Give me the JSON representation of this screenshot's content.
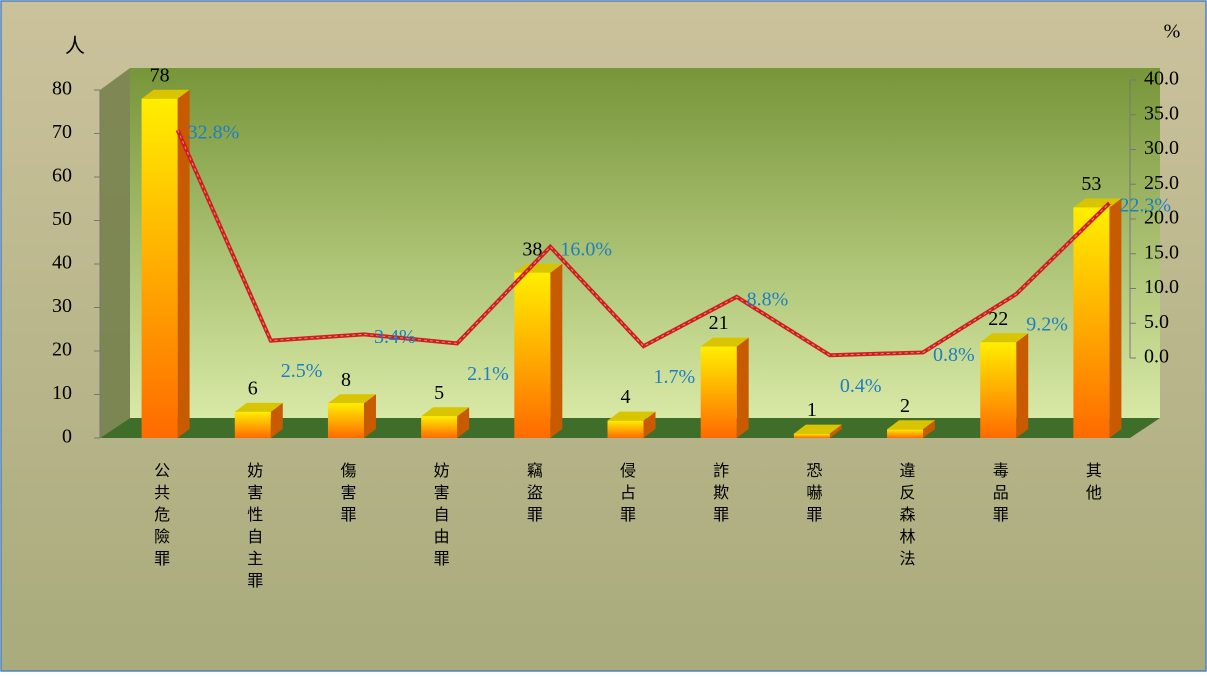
{
  "chart_data": {
    "type": "bar-line",
    "y_label": "人",
    "y2_label": "%",
    "categories": [
      "公共危險罪",
      "妨害性自主罪",
      "傷害罪",
      "妨害自由罪",
      "竊盜罪",
      "侵占罪",
      "詐欺罪",
      "恐嚇罪",
      "違反森林法",
      "毒品罪",
      "其他"
    ],
    "series": [
      {
        "type": "bar",
        "color": "#ff9900",
        "values": [
          78,
          6,
          8,
          5,
          38,
          4,
          21,
          1,
          2,
          22,
          53
        ]
      },
      {
        "type": "line",
        "axis": "y2",
        "color": "#cc1f1f",
        "values": [
          32.8,
          2.5,
          3.4,
          2.1,
          16.0,
          1.7,
          8.8,
          0.4,
          0.8,
          9.2,
          22.3
        ],
        "value_labels": [
          "32.8%",
          "2.5%",
          "3.4%",
          "2.1%",
          "16.0%",
          "1.7%",
          "8.8%",
          "0.4%",
          "0.8%",
          "9.2%",
          "22.3%"
        ]
      }
    ],
    "ylim": [
      0,
      80
    ],
    "yticks": [
      0,
      10,
      20,
      30,
      40,
      50,
      60,
      70,
      80
    ],
    "y2lim": [
      0,
      40
    ],
    "y2ticks": [
      {
        "value": 0,
        "label": "0.0"
      },
      {
        "value": 5,
        "label": "5.0"
      },
      {
        "value": 10,
        "label": "10.0"
      },
      {
        "value": 15,
        "label": "15.0"
      },
      {
        "value": 20,
        "label": "20.0"
      },
      {
        "value": 25,
        "label": "25.0"
      },
      {
        "value": 30,
        "label": "30.0"
      },
      {
        "value": 35,
        "label": "35.0"
      },
      {
        "value": 40,
        "label": "40.0"
      }
    ]
  }
}
